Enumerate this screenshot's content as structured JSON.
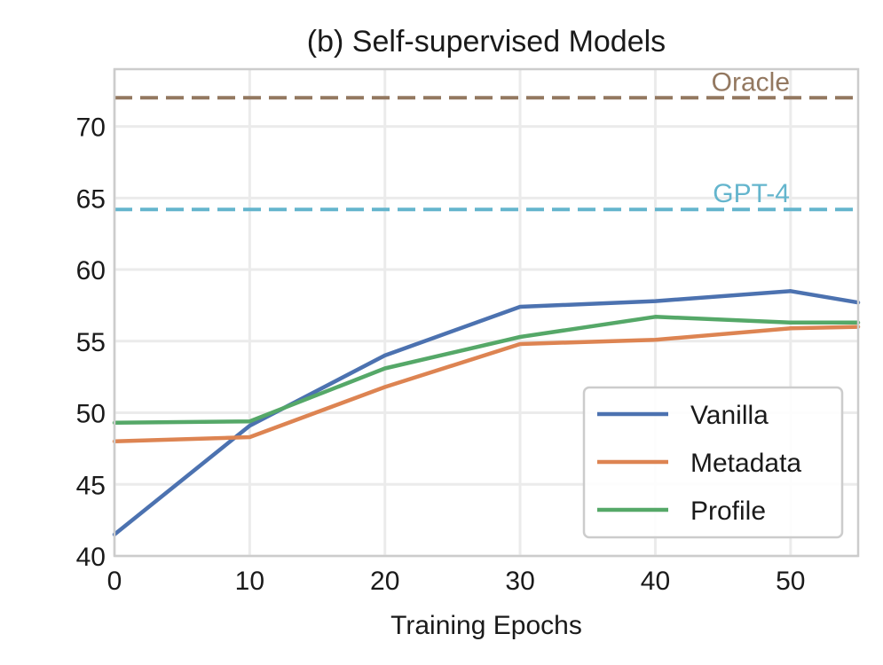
{
  "chart_data": {
    "type": "line",
    "title": "(b) Self-supervised Models",
    "xlabel": "Training Epochs",
    "ylabel": "",
    "xlim": [
      0,
      55
    ],
    "ylim": [
      40,
      74
    ],
    "xticks": [
      0,
      10,
      20,
      30,
      40,
      50
    ],
    "yticks": [
      40,
      45,
      50,
      55,
      60,
      65,
      70
    ],
    "xtick_labels": [
      "0",
      "10",
      "20",
      "30",
      "40",
      "50"
    ],
    "ytick_labels": [
      "40",
      "45",
      "50",
      "55",
      "60",
      "65",
      "70"
    ],
    "grid": true,
    "legend_position": "bottom-right",
    "series": [
      {
        "name": "Vanilla",
        "color": "#4c72b0",
        "x": [
          0,
          10,
          20,
          30,
          40,
          50,
          55
        ],
        "y": [
          41.5,
          49.1,
          54.0,
          57.4,
          57.8,
          58.5,
          57.7
        ]
      },
      {
        "name": "Metadata",
        "color": "#dd8452",
        "x": [
          0,
          10,
          20,
          30,
          40,
          50,
          55
        ],
        "y": [
          48.0,
          48.3,
          51.8,
          54.8,
          55.1,
          55.9,
          56.0
        ]
      },
      {
        "name": "Profile",
        "color": "#55a868",
        "x": [
          0,
          10,
          20,
          30,
          40,
          50,
          55
        ],
        "y": [
          49.3,
          49.4,
          53.1,
          55.3,
          56.7,
          56.3,
          56.3
        ]
      }
    ],
    "reference_lines": [
      {
        "label": "Oracle",
        "value": 72.0,
        "color": "#937860"
      },
      {
        "label": "GPT-4",
        "value": 64.2,
        "color": "#64b5cd"
      }
    ]
  }
}
